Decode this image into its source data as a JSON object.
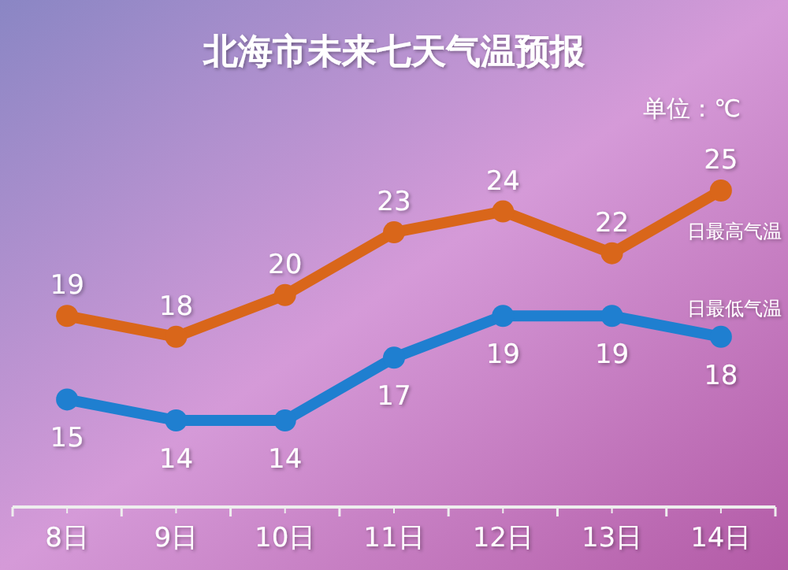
{
  "chart_data": {
    "type": "line",
    "title": "北海市未来七天气温预报",
    "annotations": [
      "单位：℃"
    ],
    "categories": [
      "8日",
      "9日",
      "10日",
      "11日",
      "12日",
      "13日",
      "14日"
    ],
    "series": [
      {
        "name": "日最高气温",
        "color": "#d9661a",
        "values": [
          19,
          18,
          20,
          23,
          24,
          22,
          25
        ]
      },
      {
        "name": "日最低气温",
        "color": "#1f7fd0",
        "values": [
          15,
          14,
          14,
          17,
          19,
          19,
          18
        ]
      }
    ],
    "data_labels": true,
    "marker": "circle",
    "line_style": "solid"
  }
}
